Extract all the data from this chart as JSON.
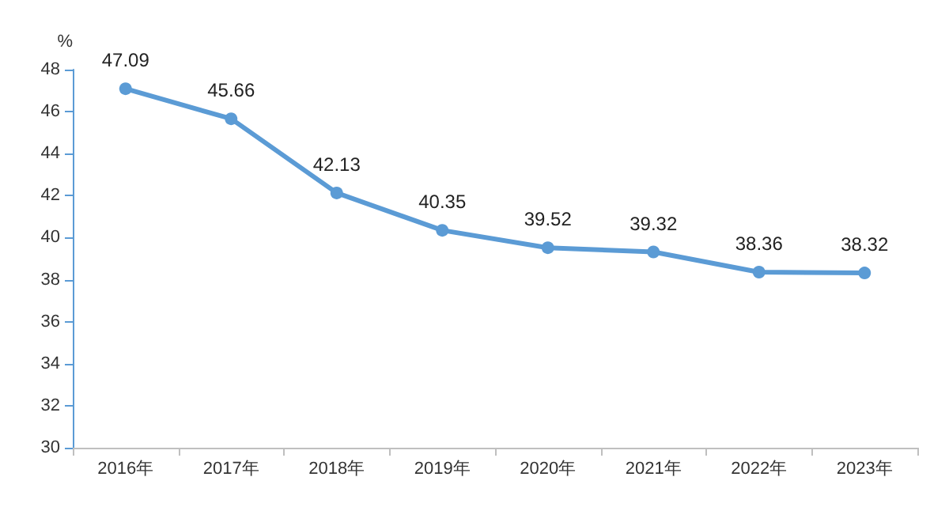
{
  "chart_data": {
    "type": "line",
    "ylabel": "%",
    "categories": [
      "2016年",
      "2017年",
      "2018年",
      "2019年",
      "2020年",
      "2021年",
      "2022年",
      "2023年"
    ],
    "series": [
      {
        "color": "#5b9bd5",
        "values": [
          47.09,
          45.66,
          42.13,
          40.35,
          39.52,
          39.32,
          38.36,
          38.32
        ]
      }
    ],
    "ylim": [
      30,
      48
    ],
    "yticks": [
      30,
      32,
      34,
      36,
      38,
      40,
      42,
      44,
      46,
      48
    ],
    "grid": false,
    "marker": "circle",
    "line_style": "solid",
    "data_labels": true
  }
}
